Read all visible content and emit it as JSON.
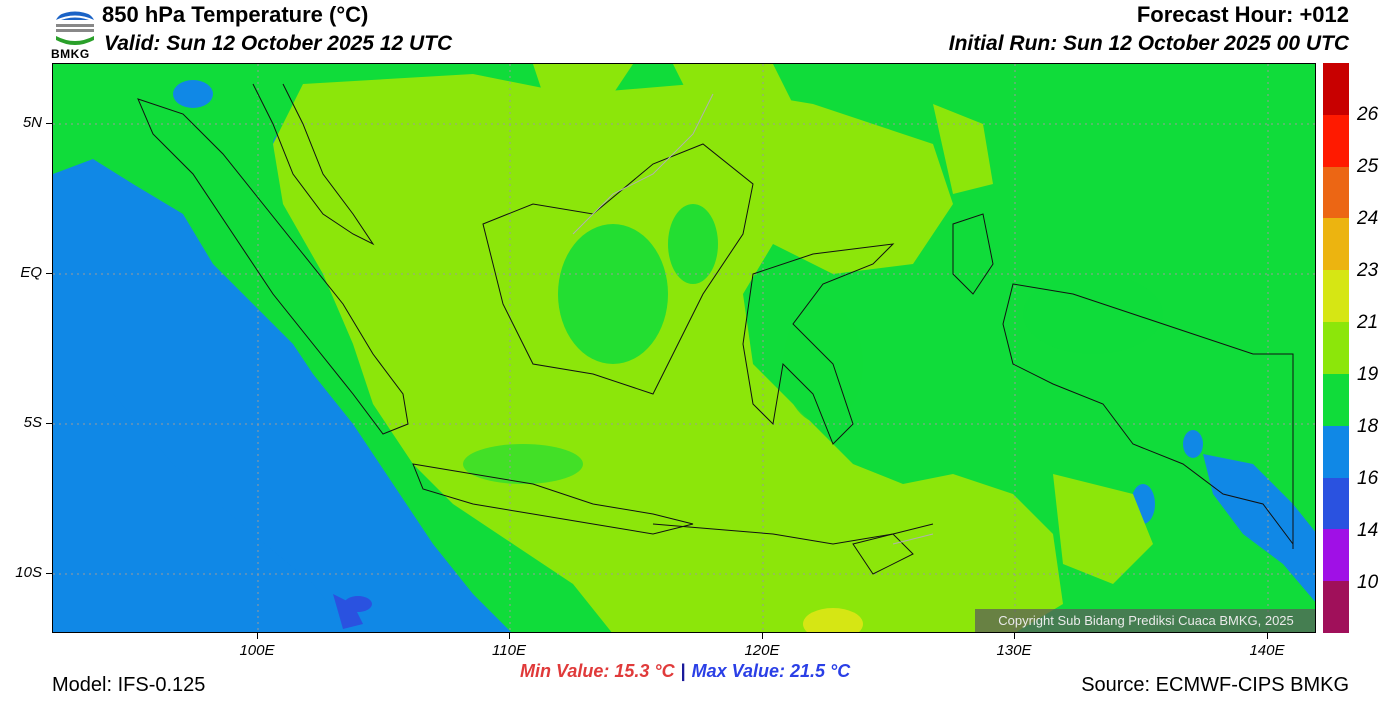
{
  "header": {
    "title": "850 hPa Temperature (°C)",
    "valid": "Valid: Sun 12 October 2025 12 UTC",
    "forecast_hour": "Forecast Hour: +012",
    "initial_run": "Initial Run: Sun 12 October 2025 00 UTC"
  },
  "logo": {
    "text": "BMKG"
  },
  "map": {
    "lat_labels": [
      "5N",
      "EQ",
      "5S",
      "10S"
    ],
    "lon_labels": [
      "100E",
      "110E",
      "120E",
      "130E",
      "140E"
    ],
    "copyright": "Copyright Sub Bidang Prediksi Cuaca BMKG, 2025"
  },
  "colorbar": {
    "labels": [
      "26",
      "25",
      "24",
      "23",
      "21",
      "19",
      "18",
      "16",
      "14",
      "10"
    ],
    "colors": [
      "#c80000",
      "#ff1a00",
      "#ec6614",
      "#ecb410",
      "#d6e614",
      "#8ce60a",
      "#10dc3a",
      "#1088e6",
      "#2a52e0",
      "#a010e6",
      "#a0105a"
    ]
  },
  "footer": {
    "min_value": "Min Value: 15.3 °C",
    "separator": "|",
    "max_value": "Max Value: 21.5 °C",
    "model": "Model: IFS-0.125",
    "source": "Source: ECMWF-CIPS BMKG"
  }
}
